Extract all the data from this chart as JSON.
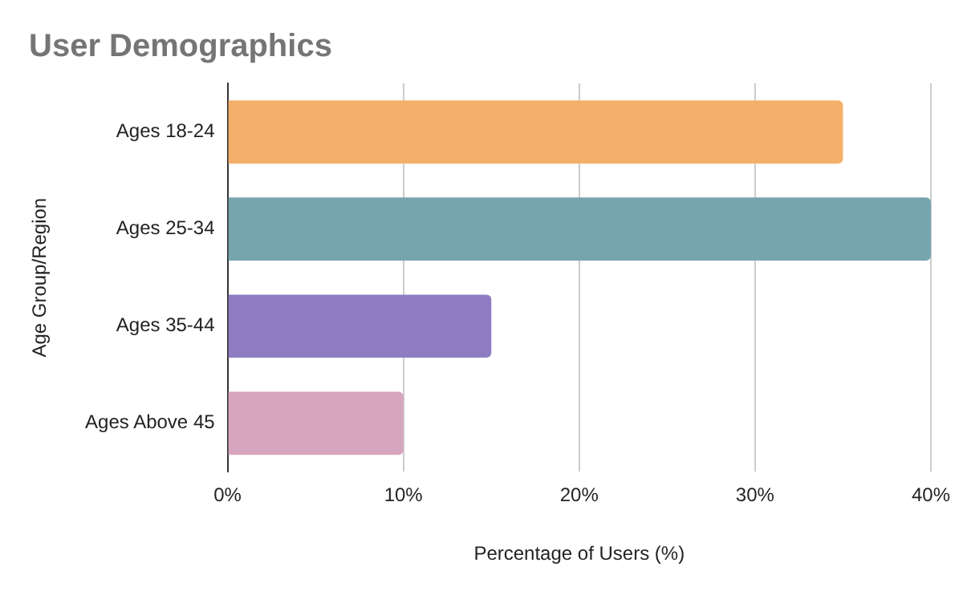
{
  "chart_data": {
    "type": "bar",
    "orientation": "horizontal",
    "title": "User Demographics",
    "xlabel": "Percentage of Users (%)",
    "ylabel": "Age Group/Region",
    "categories": [
      "Ages 18-24",
      "Ages 25-34",
      "Ages 35-44",
      "Ages Above 45"
    ],
    "values": [
      35,
      40,
      15,
      10
    ],
    "colors": [
      "#f4b06b",
      "#76a5af",
      "#8e7cc3",
      "#d5a6bd"
    ],
    "xlim": [
      0,
      40
    ],
    "xticks": [
      {
        "value": 0,
        "label": "0%"
      },
      {
        "value": 10,
        "label": "10%"
      },
      {
        "value": 20,
        "label": "20%"
      },
      {
        "value": 30,
        "label": "30%"
      },
      {
        "value": 40,
        "label": "40%"
      }
    ],
    "grid": "x",
    "legend": false
  }
}
